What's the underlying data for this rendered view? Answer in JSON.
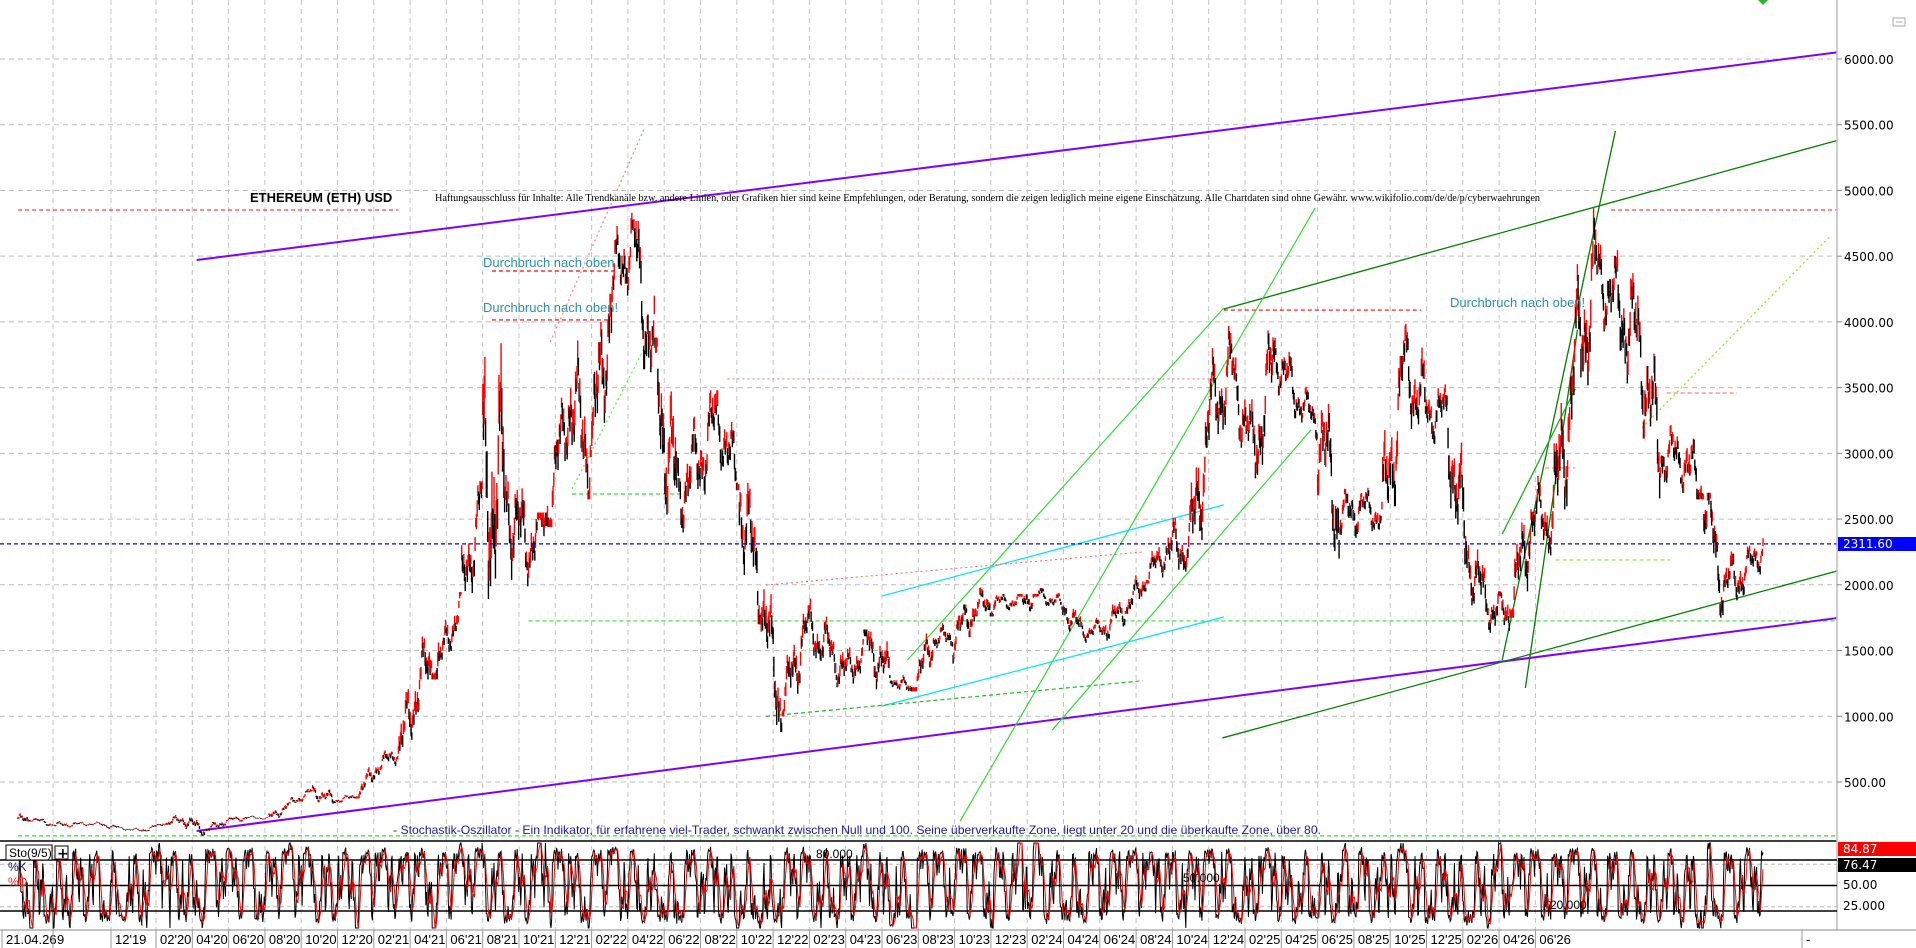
{
  "header": {
    "title": "ETHEREUM (ETH) USD",
    "disclaimer": "Haftungsausschluss für Inhalte: Alle Trendkanäle bzw. andere Linien, oder Grafiken hier sind keine Empfehlungen, oder Beratung, sondern die zeigen lediglich meine eigene Einschätzung. Alle Chartdaten sind ohne Gewähr.  www.wikifolio.com/de/de/p/cyberwaehrungen"
  },
  "annotations": {
    "breakout_1": "Durchbruch nach oben",
    "breakout_2": "Durchbruch nach oben!",
    "breakout_3": "Durchbruch nach oben!",
    "stochastic_note": "- Stochastik-Oszillator - Ein Indikator, für erfahrene viel-Trader, schwankt zwischen Null und 100. Seine überverkaufte Zone, liegt unter 20 und die überkaufte Zone, über 80."
  },
  "indicator": {
    "name": "Sto(9/5)",
    "add_button": "+",
    "k_label": "%K",
    "d_label": "%D",
    "k_value": "84.87",
    "d_value": "76.47",
    "level_labels": [
      "80.000",
      "50.000",
      "20.000"
    ],
    "axis_labels": [
      "50.00",
      "25.000"
    ],
    "levels": [
      80,
      50,
      20
    ],
    "colors": {
      "k": "#000000",
      "d": "#ff0000"
    }
  },
  "chart_data": {
    "type": "candlestick",
    "title": "ETHEREUM (ETH) USD",
    "current_price": "2311.60",
    "ylim": [
      0,
      6250
    ],
    "yticks": [
      "6000.00",
      "5500.00",
      "5000.00",
      "4500.00",
      "4000.00",
      "3500.00",
      "3000.00",
      "2500.00",
      "2000.00",
      "1500.00",
      "1000.00",
      "500.00"
    ],
    "ytick_values": [
      6000,
      5500,
      5000,
      4500,
      4000,
      3500,
      3000,
      2500,
      2000,
      1500,
      1000,
      500
    ],
    "xticks": [
      "21.04.26",
      "9",
      "12'19",
      "02'20",
      "04'20",
      "06'20",
      "08'20",
      "10'20",
      "12'20",
      "02'21",
      "04'21",
      "06'21",
      "08'21",
      "10'21",
      "12'21",
      "02'22",
      "04'22",
      "06'22",
      "08'22",
      "10'22",
      "12'22",
      "02'23",
      "04'23",
      "06'23",
      "08'23",
      "10'23",
      "12'23",
      "02'24",
      "04'24",
      "06'24",
      "08'24",
      "10'24",
      "12'24",
      "02'25",
      "04'25",
      "06'25",
      "08'25",
      "10'25",
      "12'25",
      "02'26",
      "04'26",
      "06'26",
      "-"
    ],
    "grid": true,
    "colors": {
      "up": "#ff0000",
      "down": "#000000",
      "current_price": "#0000ff"
    },
    "monthly_hlc": [
      [
        "2019-07",
        320,
        200,
        218
      ],
      [
        "2019-08",
        230,
        165,
        172
      ],
      [
        "2019-09",
        225,
        155,
        180
      ],
      [
        "2019-10",
        200,
        155,
        182
      ],
      [
        "2019-11",
        195,
        140,
        152
      ],
      [
        "2019-12",
        155,
        117,
        130
      ],
      [
        "2020-01",
        180,
        125,
        180
      ],
      [
        "2020-02",
        288,
        175,
        218
      ],
      [
        "2020-03",
        250,
        90,
        133
      ],
      [
        "2020-04",
        227,
        130,
        206
      ],
      [
        "2020-05",
        245,
        180,
        231
      ],
      [
        "2020-06",
        250,
        215,
        225
      ],
      [
        "2020-07",
        345,
        225,
        345
      ],
      [
        "2020-08",
        445,
        340,
        434
      ],
      [
        "2020-09",
        480,
        310,
        360
      ],
      [
        "2020-10",
        415,
        335,
        386
      ],
      [
        "2020-11",
        620,
        375,
        612
      ],
      [
        "2020-12",
        755,
        530,
        737
      ],
      [
        "2021-01",
        1475,
        715,
        1314
      ],
      [
        "2021-02",
        2040,
        1280,
        1417
      ],
      [
        "2021-03",
        1945,
        1430,
        1918
      ],
      [
        "2021-04",
        2790,
        1890,
        2773
      ],
      [
        "2021-05",
        4380,
        1730,
        2714
      ],
      [
        "2021-06",
        2890,
        1700,
        2275
      ],
      [
        "2021-07",
        2550,
        1720,
        2536
      ],
      [
        "2021-08",
        3470,
        2440,
        3433
      ],
      [
        "2021-09",
        4030,
        2650,
        3001
      ],
      [
        "2021-10",
        4460,
        2970,
        4288
      ],
      [
        "2021-11",
        4870,
        3980,
        4631
      ],
      [
        "2021-12",
        4780,
        3500,
        3683
      ],
      [
        "2022-01",
        3880,
        2160,
        2688
      ],
      [
        "2022-02",
        3280,
        2300,
        2922
      ],
      [
        "2022-03",
        3480,
        2460,
        3283
      ],
      [
        "2022-04",
        3580,
        2720,
        2727
      ],
      [
        "2022-05",
        2960,
        1700,
        1942
      ],
      [
        "2022-06",
        1970,
        880,
        1067
      ],
      [
        "2022-07",
        1780,
        1000,
        1679
      ],
      [
        "2022-08",
        2030,
        1420,
        1554
      ],
      [
        "2022-09",
        1790,
        1220,
        1328
      ],
      [
        "2022-10",
        1660,
        1190,
        1572
      ],
      [
        "2022-11",
        1680,
        1080,
        1295
      ],
      [
        "2022-12",
        1350,
        1160,
        1196
      ],
      [
        "2023-01",
        1680,
        1190,
        1585
      ],
      [
        "2023-02",
        1740,
        1460,
        1605
      ],
      [
        "2023-03",
        1850,
        1370,
        1822
      ],
      [
        "2023-04",
        2140,
        1760,
        1870
      ],
      [
        "2023-05",
        1930,
        1740,
        1874
      ],
      [
        "2023-06",
        1930,
        1620,
        1934
      ],
      [
        "2023-07",
        2030,
        1840,
        1857
      ],
      [
        "2023-08",
        1870,
        1550,
        1645
      ],
      [
        "2023-09",
        1750,
        1530,
        1671
      ],
      [
        "2023-10",
        1870,
        1520,
        1815
      ],
      [
        "2023-11",
        2130,
        1780,
        2048
      ],
      [
        "2023-12",
        2420,
        2010,
        2282
      ],
      [
        "2024-01",
        2710,
        2100,
        2283
      ],
      [
        "2024-02",
        3520,
        2260,
        3340
      ],
      [
        "2024-03",
        4090,
        3060,
        3645
      ],
      [
        "2024-04",
        3730,
        2860,
        3014
      ],
      [
        "2024-05",
        3980,
        2810,
        3762
      ],
      [
        "2024-06",
        3880,
        3240,
        3433
      ],
      [
        "2024-07",
        3560,
        3090,
        3232
      ],
      [
        "2024-08",
        3470,
        2120,
        2513
      ],
      [
        "2024-09",
        2730,
        2150,
        2603
      ],
      [
        "2024-10",
        2770,
        2310,
        2518
      ],
      [
        "2024-11",
        3740,
        2350,
        3705
      ],
      [
        "2024-12",
        4110,
        3100,
        3332
      ],
      [
        "2025-01",
        3740,
        3070,
        3300
      ],
      [
        "2025-02",
        3440,
        2120,
        2237
      ],
      [
        "2025-03",
        2550,
        1770,
        1822
      ],
      [
        "2025-04",
        1950,
        1390,
        1794
      ],
      [
        "2025-05",
        2740,
        1750,
        2528
      ],
      [
        "2025-06",
        2880,
        2110,
        2486
      ],
      [
        "2025-07",
        3940,
        2370,
        3700
      ],
      [
        "2025-08",
        4950,
        3350,
        4390
      ],
      [
        "2025-09",
        4770,
        3820,
        4145
      ],
      [
        "2025-10",
        4750,
        3430,
        3850
      ],
      [
        "2025-11",
        4000,
        2620,
        2990
      ],
      [
        "2025-12",
        3450,
        2770,
        2970
      ],
      [
        "2026-01",
        3400,
        2650,
        2700
      ],
      [
        "2026-02",
        2700,
        1750,
        2000
      ],
      [
        "2026-03",
        2400,
        1800,
        2100
      ],
      [
        "2026-04",
        2450,
        2000,
        2311.6
      ]
    ],
    "last_date": "2026-04-26",
    "trendlines": [
      {
        "from": [
          "2020-03-20",
          4471
        ],
        "to": [
          "2026-08-10",
          6050
        ],
        "color": "#8000ff",
        "style": "solid",
        "width": 2
      },
      {
        "from": [
          "2020-03-20",
          127
        ],
        "to": [
          "2026-08-10",
          1747
        ],
        "color": "#8000ff",
        "style": "solid",
        "width": 2
      },
      {
        "from": [
          "2024-03-20",
          4098
        ],
        "to": [
          "2026-08-10",
          5380
        ],
        "color": "#008000",
        "style": "solid",
        "width": 1.3
      },
      {
        "from": [
          "2024-03-18",
          835
        ],
        "to": [
          "2026-08-10",
          2105
        ],
        "color": "#008000",
        "style": "solid",
        "width": 1.3
      },
      {
        "from": [
          "2025-04-20",
          1428
        ],
        "to": [
          "2025-09-28",
          5452
        ],
        "color": "#008000",
        "style": "solid",
        "width": 1.3
      },
      {
        "from": [
          "2025-05-23",
          1215
        ],
        "to": [
          "2025-08-05",
          3938
        ],
        "color": "#008000",
        "style": "solid",
        "width": 1.3
      },
      {
        "from": [
          "2025-04-20",
          2386
        ],
        "to": [
          "2025-08-02",
          3490
        ],
        "color": "#20b020",
        "style": "solid",
        "width": 1.3
      },
      {
        "from": [
          "2023-03-11",
          203
        ],
        "to": [
          "2024-07-28",
          4867
        ],
        "color": "#33dd33",
        "style": "solid",
        "width": 1.2
      },
      {
        "from": [
          "2022-12-26",
          1428
        ],
        "to": [
          "2024-03-20",
          4106
        ],
        "color": "#33dd33",
        "style": "solid",
        "width": 1.2
      },
      {
        "from": [
          "2023-07-20",
          895
        ],
        "to": [
          "2024-07-22",
          3178
        ],
        "color": "#33dd33",
        "style": "solid",
        "width": 1.2
      },
      {
        "from": [
          "2021-09-05",
          2729
        ],
        "to": [
          "2021-12-17",
          3802
        ],
        "color": "#66ee44",
        "style": "dotted",
        "width": 1.3
      },
      {
        "from": [
          "2025-11-05",
          3195
        ],
        "to": [
          "2026-08-01",
          4661
        ],
        "color": "#88ee22",
        "style": "dotted",
        "width": 1.3
      },
      {
        "from": [
          "2022-11-20",
          1915
        ],
        "to": [
          "2024-03-20",
          2608
        ],
        "color": "#00e5ff",
        "style": "solid",
        "width": 1.3
      },
      {
        "from": [
          "2022-11-20",
          1078
        ],
        "to": [
          "2024-03-20",
          1755
        ],
        "color": "#00e5ff",
        "style": "solid",
        "width": 1.3
      },
      {
        "from": [
          "2022-06-08",
          1000
        ],
        "to": [
          "2023-11-26",
          1270
        ],
        "color": "#22bb22",
        "style": "dashed",
        "width": 1.2
      },
      {
        "from": [
          "2022-06-08",
          1998
        ],
        "to": [
          "2023-11-26",
          2250
        ],
        "color": "#ff6060",
        "style": "dotted",
        "width": 1
      },
      {
        "from": [
          "2021-08-05",
          3847
        ],
        "to": [
          "2021-12-17",
          5475
        ],
        "color": "#ff8080",
        "style": "dotted",
        "width": 1.2
      }
    ],
    "levels": [
      {
        "price": 4851,
        "from": "2019-07-10",
        "to": "2021-01-01",
        "color": "#ff4040",
        "style": "dashed"
      },
      {
        "price": 4851,
        "from": "2025-09-22",
        "to": "2026-08-10",
        "color": "#ff4040",
        "style": "dashed"
      },
      {
        "price": 4387,
        "from": "2021-05-14",
        "to": "2021-11-05",
        "color": "#ff0000",
        "style": "dashed"
      },
      {
        "price": 4015,
        "from": "2021-05-14",
        "to": "2021-10-25",
        "color": "#ff0000",
        "style": "dashed"
      },
      {
        "price": 4090,
        "from": "2024-03-20",
        "to": "2024-12-26",
        "color": "#ff0000",
        "style": "dashed"
      },
      {
        "price": 3566,
        "from": "2022-04-14",
        "to": "2024-03-06",
        "color": "#ff8080",
        "style": "dotted"
      },
      {
        "price": 3459,
        "from": "2025-12-10",
        "to": "2026-03-20",
        "color": "#ff8080",
        "style": "dashed"
      },
      {
        "price": 2889,
        "from": "2025-06-20",
        "to": "2025-08-02",
        "color": "#ff8080",
        "style": "dashed"
      },
      {
        "price": 2691,
        "from": "2021-09-05",
        "to": "2022-02-08",
        "color": "#33dd33",
        "style": "dashed"
      },
      {
        "price": 2189,
        "from": "2025-07-05",
        "to": "2025-12-15",
        "color": "#88ee22",
        "style": "dashed"
      },
      {
        "price": 1725,
        "from": "2021-07-05",
        "to": "2026-08-10",
        "color": "#33dd33",
        "style": "dashed"
      },
      {
        "price": 90,
        "from": "2019-07-10",
        "to": "2026-08-10",
        "color": "#33dd33",
        "style": "dashed"
      }
    ]
  }
}
